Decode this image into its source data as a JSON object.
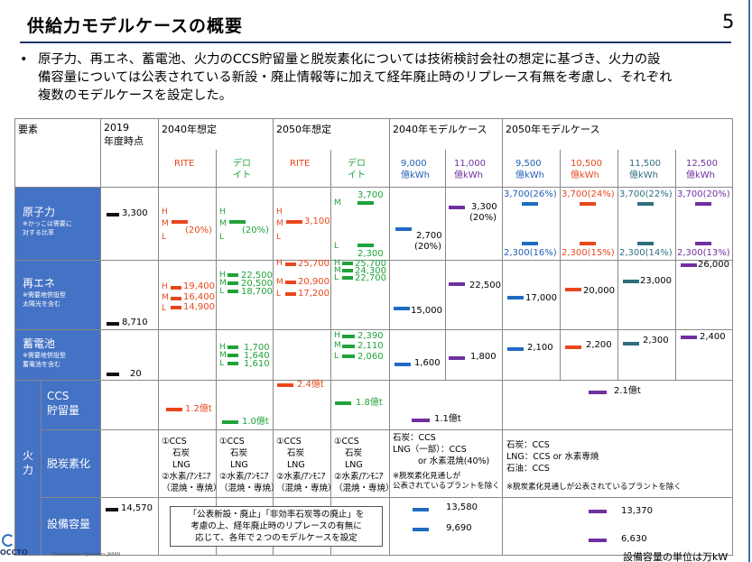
{
  "page": {
    "title": "供給力モデルケースの概要",
    "page_number": "5",
    "bullet": "原子力、再エネ、蓄電池、火力のCCS貯留量と脱炭素化については技術検討会社の想定に基づき、火力の設備容量については公表されている新設・廃止情報等に加えて経年廃止時のリプレース有無を考慮し、それぞれ複数のモデルケースを設定した。",
    "bullet_lines": [
      "原子力、再エネ、蓄電池、火力のCCS貯留量と脱炭素化については技術検討会社の想定に基づき、火力の設",
      "備容量については公表されている新設・廃止情報等に加えて経年廃止時のリプレース有無を考慮し、それぞれ",
      "複数のモデルケースを設定した。"
    ],
    "footer_logo": "OCCTO",
    "footer_org": "Transmission Operators JAPAN",
    "unit_note": "設備容量の単位は万kW"
  },
  "header": {
    "element": "要素",
    "y2019": "2019",
    "y2019_sub": "年度時点",
    "a2040": "2040年想定",
    "a2050": "2050年想定",
    "mc2040": "2040年モデルケース",
    "mc2050": "2050年モデルケース",
    "rite": "RITE",
    "deloitte_1": "デロ",
    "deloitte_2": "イト",
    "d9000_1": "9,000",
    "d9000_2": "億kWh",
    "d11000_1": "11,000",
    "d11000_2": "億kWh",
    "d9500_1": "9,500",
    "d9500_2": "億kWh",
    "d10500_1": "10,500",
    "d10500_2": "億kWh",
    "d11500_1": "11,500",
    "d11500_2": "億kWh",
    "d12500_1": "12,500",
    "d12500_2": "億kWh"
  },
  "rows": {
    "nuclear": "原子力",
    "nuclear_note_1": "※かっこは需要に",
    "nuclear_note_2": "対する比率",
    "renew": "再エネ",
    "renew_note_1": "※需要地併設型",
    "renew_note_2": "太陽光を含む",
    "storage": "蓄電池",
    "storage_note_1": "※需要地併設型",
    "storage_note_2": "蓄電池を含む",
    "thermal_1": "火",
    "thermal_2": "力",
    "ccs_1": "CCS",
    "ccs_2": "貯留量",
    "decarb": "脱炭素化",
    "capacity": "設備容量"
  },
  "values": {
    "n2019": "3,300",
    "n_rite_h": "H",
    "n_rite_m": "M",
    "n_rite_l": "L",
    "n_rite_val": "(20%)",
    "n_del_val": "(20%)",
    "n50_rite_val": "3,100",
    "n50_del_3700": "3,700",
    "n50_del_2300": "2,300",
    "n_mc9000": "2,700",
    "n_mc9000_p": "(20%)",
    "n_mc11000": "3,300",
    "n_mc11000_p": "(20%)",
    "n_mc50_9500_top": "3,700(26%)",
    "n_mc50_10500_top": "3,700(24%)",
    "n_mc50_11500_top": "3,700(22%)",
    "n_mc50_12500_top": "3,700(20%)",
    "n_mc50_9500_bot": "2,300(16%)",
    "n_mc50_10500_bot": "2,300(15%)",
    "n_mc50_11500_bot": "2,300(14%)",
    "n_mc50_12500_bot": "2,300(13%)",
    "r2019": "8,710",
    "r40_rite_h": "19,400",
    "r40_rite_m": "16,400",
    "r40_rite_l": "14,900",
    "r40_del_h": "22,500",
    "r40_del_m": "20,500",
    "r40_del_l": "18,700",
    "r50_rite_h": "25,700",
    "r50_rite_m": "20,900",
    "r50_rite_l": "17,200",
    "r50_del_h": "25,700",
    "r50_del_m": "24,300",
    "r50_del_l": "22,700",
    "r_mc9000": "15,000",
    "r_mc11000": "22,500",
    "r_mc9500": "17,000",
    "r_mc10500": "20,000",
    "r_mc11500": "23,000",
    "r_mc12500": "26,000",
    "s2019": "20",
    "s40_del_h": "1,700",
    "s40_del_m": "1,640",
    "s40_del_l": "1,610",
    "s50_del_h": "2,390",
    "s50_del_m": "2,110",
    "s50_del_l": "2,060",
    "s_mc9000": "1,600",
    "s_mc11000": "1,800",
    "s_mc9500": "2,100",
    "s_mc10500": "2,200",
    "s_mc11500": "2,300",
    "s_mc12500": "2,400",
    "c40_rite": "1.2億t",
    "c40_del": "1.0億t",
    "c50_rite": "2.4億t",
    "c50_del": "1.8億t",
    "c_mc40": "1.1億t",
    "c_mc50": "2.1億t",
    "d_a_1": "①CCS",
    "d_a_2": "石炭",
    "d_a_3": "LNG",
    "d_a_4": "②水素/ｱﾝﾓﾆｱ",
    "d_a_5": "（混焼・専焼）",
    "d_mc40_1": "石炭：CCS",
    "d_mc40_2": "LNG（一部）：CCS",
    "d_mc40_3": "or 水素混焼(40%)",
    "d_mc40_4": "※脱炭素化見通しが",
    "d_mc40_5": "公表されているプラントを除く",
    "d_mc50_1": "石炭：CCS",
    "d_mc50_2": "LNG：CCS or 水素専焼",
    "d_mc50_3": "石油：CCS",
    "d_mc50_4": "※脱炭素化見通しが公表されているプラントを除く",
    "cap2019": "14,570",
    "cap_note_1": "「公表新設・廃止」「非効率石炭等の廃止」を",
    "cap_note_2": "考慮の上、経年廃止時のリプレースの有無に",
    "cap_note_3": "応じて、各年で２つのモデルケースを設定",
    "cap40_h": "13,580",
    "cap40_l": "9,690",
    "cap50_h": "13,370",
    "cap50_l": "6,630"
  },
  "colors": {
    "row_header": "#4472c4",
    "rite": "#e8471c",
    "deloitte": "#1fa33a",
    "mc9000": "#1f6cc0",
    "mc11000": "#7030a0",
    "mc11500": "#2e6e7e"
  }
}
